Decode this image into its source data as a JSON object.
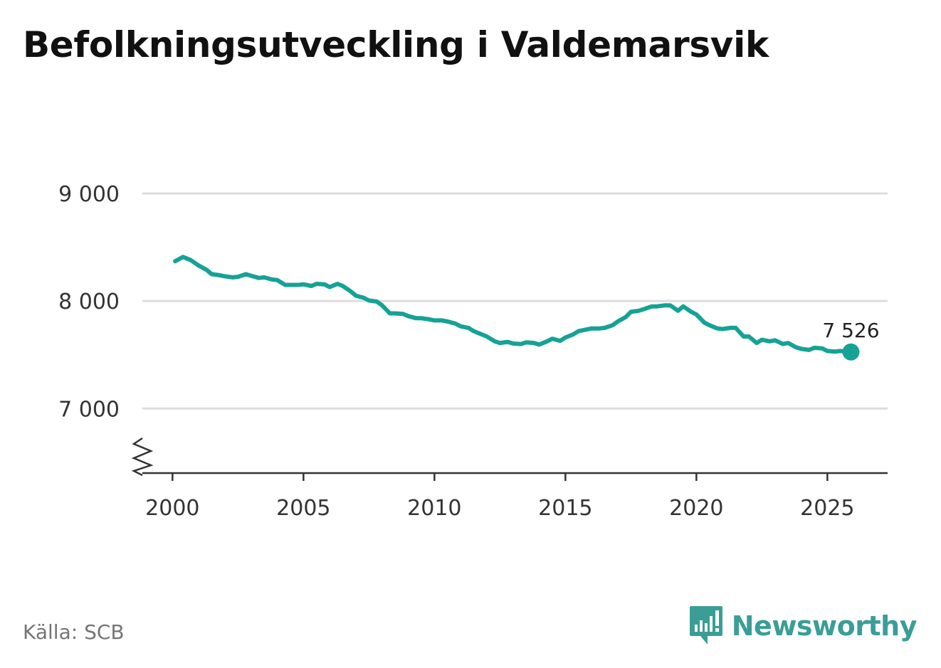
{
  "title": "Befolkningsutveckling i Valdemarsvik",
  "source": "Källa: SCB",
  "brand": {
    "name": "Newsworthy",
    "icon": "newsworthy-chart-logo-icon",
    "color": "#3a9e96"
  },
  "colors": {
    "line": "#16a295",
    "grid": "#dddddd",
    "axis": "#333333"
  },
  "chart_data": {
    "type": "line",
    "title": "Befolkningsutveckling i Valdemarsvik",
    "xlabel": "",
    "ylabel": "",
    "xlim": [
      1998.85,
      2027.3
    ],
    "ylim": [
      6400,
      9000
    ],
    "axis_break": true,
    "grid": "horizontal",
    "x_ticks": [
      2000,
      2005,
      2010,
      2015,
      2020,
      2025
    ],
    "x_tick_labels": [
      "2000",
      "2005",
      "2010",
      "2015",
      "2020",
      "2025"
    ],
    "y_ticks": [
      7000,
      8000,
      9000
    ],
    "y_tick_labels": [
      "7 000",
      "8 000",
      "9 000"
    ],
    "end_label": "7 526",
    "series": [
      {
        "x": [
          2000.1,
          2000.4,
          2000.7,
          2001.0,
          2001.3,
          2001.5,
          2001.8,
          2002.0,
          2002.3,
          2002.5,
          2002.8,
          2003.0,
          2003.3,
          2003.5,
          2003.8,
          2004.0,
          2004.3,
          2004.5,
          2004.8,
          2005.0,
          2005.3,
          2005.5,
          2005.8,
          2006.0,
          2006.3,
          2006.5,
          2006.8,
          2007.0,
          2007.3,
          2007.5,
          2007.8,
          2008.0,
          2008.3,
          2008.5,
          2008.8,
          2009.0,
          2009.3,
          2009.5,
          2009.8,
          2010.0,
          2010.3,
          2010.5,
          2010.8,
          2011.0,
          2011.3,
          2011.5,
          2011.8,
          2012.0,
          2012.3,
          2012.5,
          2012.8,
          2013.0,
          2013.3,
          2013.5,
          2013.8,
          2014.0,
          2014.3,
          2014.5,
          2014.8,
          2015.0,
          2015.3,
          2015.5,
          2015.8,
          2016.0,
          2016.3,
          2016.5,
          2016.8,
          2017.0,
          2017.3,
          2017.5,
          2017.8,
          2018.0,
          2018.3,
          2018.5,
          2018.8,
          2019.0,
          2019.3,
          2019.5,
          2019.8,
          2020.0,
          2020.3,
          2020.5,
          2020.8,
          2021.0,
          2021.3,
          2021.5,
          2021.8,
          2022.0,
          2022.3,
          2022.5,
          2022.8,
          2023.0,
          2023.3,
          2023.5,
          2023.8,
          2024.0,
          2024.3,
          2024.5,
          2024.8,
          2025.0,
          2025.3,
          2025.5,
          2025.9
        ],
        "y": [
          8370,
          8410,
          8380,
          8330,
          8290,
          8250,
          8240,
          8230,
          8220,
          8225,
          8250,
          8235,
          8215,
          8220,
          8200,
          8195,
          8150,
          8150,
          8150,
          8155,
          8140,
          8160,
          8155,
          8130,
          8160,
          8140,
          8090,
          8050,
          8030,
          8005,
          7995,
          7960,
          7885,
          7885,
          7880,
          7860,
          7840,
          7840,
          7830,
          7820,
          7820,
          7810,
          7790,
          7765,
          7750,
          7720,
          7690,
          7670,
          7625,
          7610,
          7620,
          7605,
          7600,
          7615,
          7610,
          7595,
          7625,
          7650,
          7630,
          7660,
          7690,
          7720,
          7735,
          7745,
          7745,
          7750,
          7775,
          7810,
          7850,
          7900,
          7910,
          7925,
          7950,
          7950,
          7960,
          7960,
          7910,
          7950,
          7900,
          7875,
          7800,
          7775,
          7745,
          7740,
          7750,
          7750,
          7670,
          7670,
          7610,
          7640,
          7625,
          7635,
          7600,
          7610,
          7570,
          7555,
          7545,
          7565,
          7560,
          7535,
          7530,
          7535,
          7526
        ]
      }
    ]
  }
}
